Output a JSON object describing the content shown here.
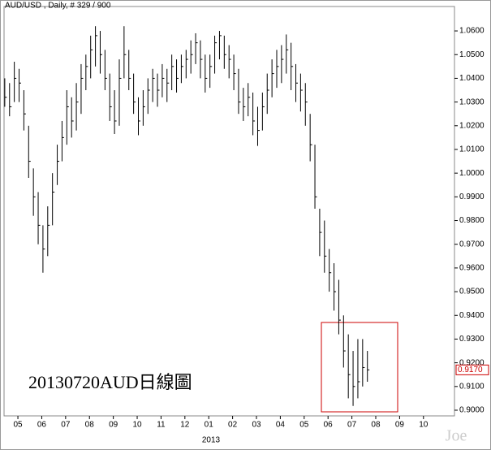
{
  "chart_data": {
    "type": "hlc",
    "title": "AUD/USD , Daily, # 329 / 900",
    "annotation": "20130720AUD日線圖",
    "year_label": "2013",
    "watermark": "Joe",
    "color": "#000000",
    "last_price": {
      "value": 0.917,
      "label": "0.9170"
    },
    "x": [
      4.45,
      4.65,
      4.85,
      5.05,
      5.25,
      5.45,
      5.65,
      5.85,
      6.05,
      6.25,
      6.45,
      6.65,
      6.85,
      7.05,
      7.25,
      7.45,
      7.65,
      7.85,
      8.05,
      8.25,
      8.45,
      8.65,
      8.85,
      9.05,
      9.25,
      9.45,
      9.65,
      9.85,
      10.05,
      10.25,
      10.45,
      10.65,
      10.85,
      11.05,
      11.25,
      11.45,
      11.65,
      11.85,
      12.05,
      12.25,
      12.45,
      12.65,
      12.85,
      13.05,
      13.25,
      13.45,
      13.65,
      13.85,
      14.05,
      14.25,
      14.45,
      14.65,
      14.85,
      15.05,
      15.25,
      15.45,
      15.65,
      15.85,
      16.05,
      16.25,
      16.45,
      16.65,
      16.85,
      17.05,
      17.25,
      17.45,
      17.65,
      17.85,
      18.05,
      18.25,
      18.45,
      18.65,
      18.85,
      19.05,
      19.25,
      19.45,
      19.65
    ],
    "high": [
      1.04,
      1.038,
      1.047,
      1.044,
      1.035,
      1.02,
      1.002,
      0.992,
      0.978,
      0.986,
      1.0,
      1.012,
      1.022,
      1.035,
      1.032,
      1.038,
      1.046,
      1.05,
      1.058,
      1.062,
      1.06,
      1.052,
      1.042,
      1.035,
      1.048,
      1.062,
      1.052,
      1.042,
      1.032,
      1.035,
      1.04,
      1.044,
      1.042,
      1.046,
      1.044,
      1.05,
      1.048,
      1.05,
      1.052,
      1.056,
      1.059,
      1.056,
      1.05,
      1.05,
      1.058,
      1.06,
      1.058,
      1.054,
      1.05,
      1.044,
      1.036,
      1.038,
      1.034,
      1.028,
      1.034,
      1.042,
      1.048,
      1.052,
      1.054,
      1.0585,
      1.055,
      1.046,
      1.042,
      1.038,
      1.025,
      1.012,
      0.985,
      0.98,
      0.968,
      0.962,
      0.955,
      0.94,
      0.932,
      0.925,
      0.93,
      0.93,
      0.925
    ],
    "low": [
      1.028,
      1.024,
      1.03,
      1.03,
      1.018,
      0.998,
      0.982,
      0.97,
      0.958,
      0.965,
      0.978,
      0.995,
      1.005,
      1.012,
      1.015,
      1.018,
      1.025,
      1.035,
      1.04,
      1.045,
      1.042,
      1.035,
      1.022,
      1.0165,
      1.02,
      1.04,
      1.035,
      1.025,
      1.016,
      1.02,
      1.025,
      1.03,
      1.028,
      1.032,
      1.03,
      1.035,
      1.034,
      1.038,
      1.04,
      1.042,
      1.046,
      1.04,
      1.034,
      1.036,
      1.042,
      1.048,
      1.044,
      1.04,
      1.035,
      1.025,
      1.022,
      1.024,
      1.016,
      1.0115,
      1.018,
      1.025,
      1.032,
      1.036,
      1.038,
      1.042,
      1.035,
      1.03,
      1.026,
      1.02,
      1.005,
      0.985,
      0.965,
      0.958,
      0.95,
      0.942,
      0.932,
      0.918,
      0.905,
      0.9018,
      0.905,
      0.91,
      0.912
    ],
    "close": [
      1.032,
      1.028,
      1.04,
      1.038,
      1.025,
      1.005,
      0.99,
      0.978,
      0.968,
      0.978,
      0.992,
      1.005,
      1.015,
      1.028,
      1.022,
      1.03,
      1.04,
      1.045,
      1.052,
      1.058,
      1.05,
      1.04,
      1.028,
      1.022,
      1.04,
      1.05,
      1.04,
      1.03,
      1.022,
      1.028,
      1.035,
      1.04,
      1.035,
      1.04,
      1.038,
      1.045,
      1.04,
      1.045,
      1.048,
      1.05,
      1.055,
      1.048,
      1.04,
      1.045,
      1.055,
      1.058,
      1.05,
      1.048,
      1.042,
      1.03,
      1.028,
      1.032,
      1.022,
      1.018,
      1.028,
      1.035,
      1.042,
      1.045,
      1.048,
      1.052,
      1.045,
      1.038,
      1.035,
      1.03,
      1.012,
      0.99,
      0.975,
      0.965,
      0.958,
      0.95,
      0.938,
      0.925,
      0.915,
      0.91,
      0.912,
      0.918,
      0.917
    ],
    "xlim": [
      4.42,
      23.3
    ],
    "xticks": [
      {
        "value": 5,
        "label": "05"
      },
      {
        "value": 6,
        "label": "06"
      },
      {
        "value": 7,
        "label": "07"
      },
      {
        "value": 8,
        "label": "08"
      },
      {
        "value": 9,
        "label": "09"
      },
      {
        "value": 10,
        "label": "10"
      },
      {
        "value": 11,
        "label": "11"
      },
      {
        "value": 12,
        "label": "12"
      },
      {
        "value": 13,
        "label": "01"
      },
      {
        "value": 14,
        "label": "02"
      },
      {
        "value": 15,
        "label": "03"
      },
      {
        "value": 16,
        "label": "04"
      },
      {
        "value": 17,
        "label": "05"
      },
      {
        "value": 18,
        "label": "06"
      },
      {
        "value": 19,
        "label": "07"
      },
      {
        "value": 20,
        "label": "08"
      },
      {
        "value": 21,
        "label": "09"
      },
      {
        "value": 22,
        "label": "10"
      }
    ],
    "ylim": [
      0.8976,
      1.0703
    ],
    "yticks": [
      {
        "value": 0.9,
        "label": "0.9000"
      },
      {
        "value": 0.91,
        "label": "0.9100"
      },
      {
        "value": 0.92,
        "label": "0.9200"
      },
      {
        "value": 0.93,
        "label": "0.9300"
      },
      {
        "value": 0.94,
        "label": "0.9400"
      },
      {
        "value": 0.95,
        "label": "0.9500"
      },
      {
        "value": 0.96,
        "label": "0.9600"
      },
      {
        "value": 0.97,
        "label": "0.9700"
      },
      {
        "value": 0.98,
        "label": "0.9800"
      },
      {
        "value": 0.99,
        "label": "0.9900"
      },
      {
        "value": 1.0,
        "label": "1.0000"
      },
      {
        "value": 1.01,
        "label": "1.0100"
      },
      {
        "value": 1.02,
        "label": "1.0200"
      },
      {
        "value": 1.03,
        "label": "1.0300"
      },
      {
        "value": 1.04,
        "label": "1.0400"
      },
      {
        "value": 1.05,
        "label": "1.0500"
      },
      {
        "value": 1.06,
        "label": "1.0600"
      }
    ]
  }
}
